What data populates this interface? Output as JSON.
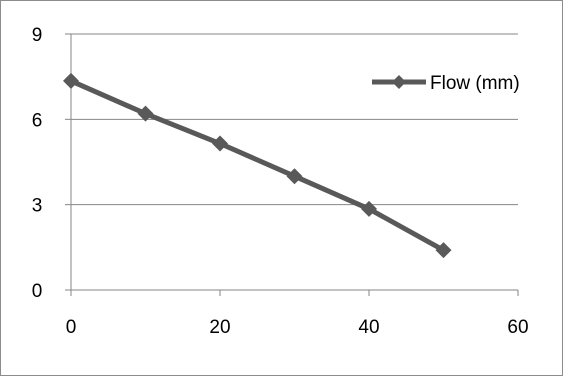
{
  "chart_data": {
    "type": "line",
    "x": [
      0,
      10,
      20,
      30,
      40,
      50
    ],
    "series": [
      {
        "name": "Flow (mm)",
        "values": [
          7.35,
          6.2,
          5.15,
          4.0,
          2.85,
          1.4
        ],
        "color": "#595959"
      }
    ],
    "xlim": [
      0,
      60
    ],
    "ylim": [
      0,
      9
    ],
    "xticks": [
      0,
      20,
      40,
      60
    ],
    "yticks": [
      0,
      3,
      6,
      9
    ],
    "xtick_labels": [
      "0",
      "20",
      "40",
      "60"
    ],
    "ytick_labels": [
      "0",
      "3",
      "6",
      "9"
    ],
    "grid": "horizontal",
    "legend": "right",
    "marker": "diamond",
    "title": "",
    "xlabel": "",
    "ylabel": ""
  }
}
